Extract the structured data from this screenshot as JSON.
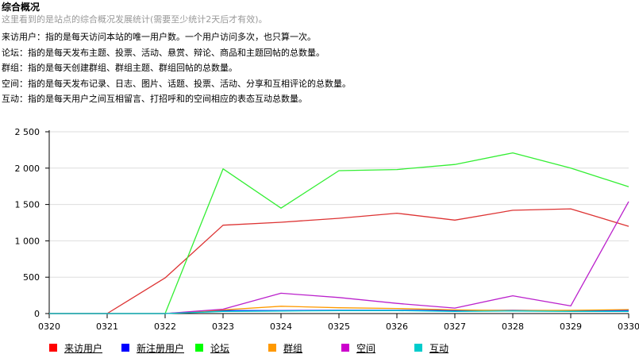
{
  "header": {
    "title": "综合概况",
    "subtitle": "这里看到的是站点的综合概况发展统计(需要至少统计2天后才有效)。"
  },
  "descriptions": [
    "来访用户：指的是每天访问本站的唯一用户数。一个用户访问多次，也只算一次。",
    "论坛：指的是每天发布主题、投票、活动、悬赏、辩论、商品和主题回帖的总数量。",
    "群组：指的是每天创建群组、群组主题、群组回帖的总数量。",
    "空间：指的是每天发布记录、日志、图片、话题、投票、活动、分享和互相评论的总数量。",
    "互动：指的是每天用户之间互相留言、打招呼和的空间相应的表态互动总数量。"
  ],
  "legend": [
    {
      "label": "来访用户",
      "color": "#ff0000"
    },
    {
      "label": "新注册用户",
      "color": "#0000ff"
    },
    {
      "label": "论坛",
      "color": "#00ff00"
    },
    {
      "label": "群组",
      "color": "#ff9900"
    },
    {
      "label": "空间",
      "color": "#cc00cc"
    },
    {
      "label": "互动",
      "color": "#00cccc"
    }
  ],
  "chart_data": {
    "type": "line",
    "x": [
      "0320",
      "0321",
      "0322",
      "0323",
      "0324",
      "0325",
      "0326",
      "0327",
      "0328",
      "0329",
      "0330"
    ],
    "ylim": [
      0,
      2500
    ],
    "yticks": [
      "0",
      "500",
      "1 000",
      "1 500",
      "2 000",
      "2 500"
    ],
    "ytick_values": [
      0,
      500,
      1000,
      1500,
      2000,
      2500
    ],
    "grid": true,
    "legend_position": "bottom",
    "series": [
      {
        "name": "来访用户",
        "color": "#dd3333",
        "values": [
          0,
          0,
          490,
          1215,
          1255,
          1310,
          1380,
          1285,
          1420,
          1440,
          1200
        ]
      },
      {
        "name": "新注册用户",
        "color": "#0000ff",
        "values": [
          0,
          0,
          0,
          40,
          40,
          45,
          45,
          40,
          45,
          40,
          45
        ]
      },
      {
        "name": "论坛",
        "color": "#33ee33",
        "values": [
          0,
          0,
          0,
          1990,
          1450,
          1965,
          1980,
          2050,
          2210,
          2000,
          1745
        ]
      },
      {
        "name": "群组",
        "color": "#ff9900",
        "values": [
          0,
          0,
          0,
          50,
          100,
          80,
          70,
          50,
          40,
          45,
          55
        ]
      },
      {
        "name": "空间",
        "color": "#bb22cc",
        "values": [
          0,
          0,
          0,
          60,
          280,
          220,
          140,
          75,
          245,
          105,
          1540
        ]
      },
      {
        "name": "互动",
        "color": "#00cccc",
        "values": [
          0,
          0,
          0,
          30,
          35,
          40,
          40,
          30,
          35,
          30,
          30
        ]
      }
    ]
  }
}
